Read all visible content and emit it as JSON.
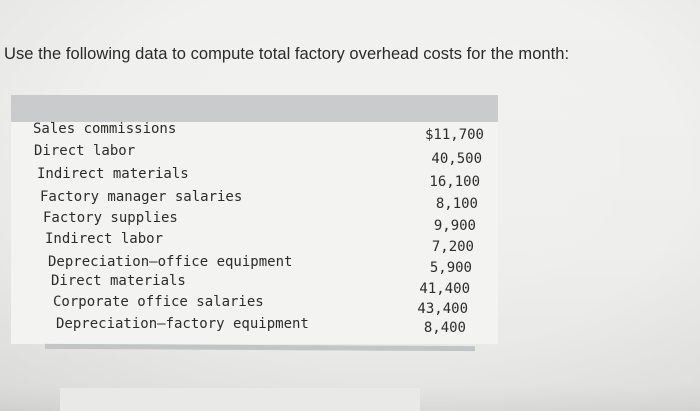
{
  "question": "Use the following data to compute total factory overhead costs for the month:",
  "items": [
    {
      "label": "Sales commissions",
      "value": "$11,700"
    },
    {
      "label": "Direct labor",
      "value": "40,500"
    },
    {
      "label": "Indirect materials",
      "value": "16,100"
    },
    {
      "label": "Factory manager salaries",
      "value": "8,100"
    },
    {
      "label": "Factory supplies",
      "value": "9,900"
    },
    {
      "label": "Indirect labor",
      "value": "7,200"
    },
    {
      "label": "Depreciation–office equipment",
      "value": "5,900"
    },
    {
      "label": "Direct materials",
      "value": "41,400"
    },
    {
      "label": "Corporate office salaries",
      "value": "43,400"
    },
    {
      "label": "Depreciation–factory equipment",
      "value": "8,400"
    }
  ]
}
